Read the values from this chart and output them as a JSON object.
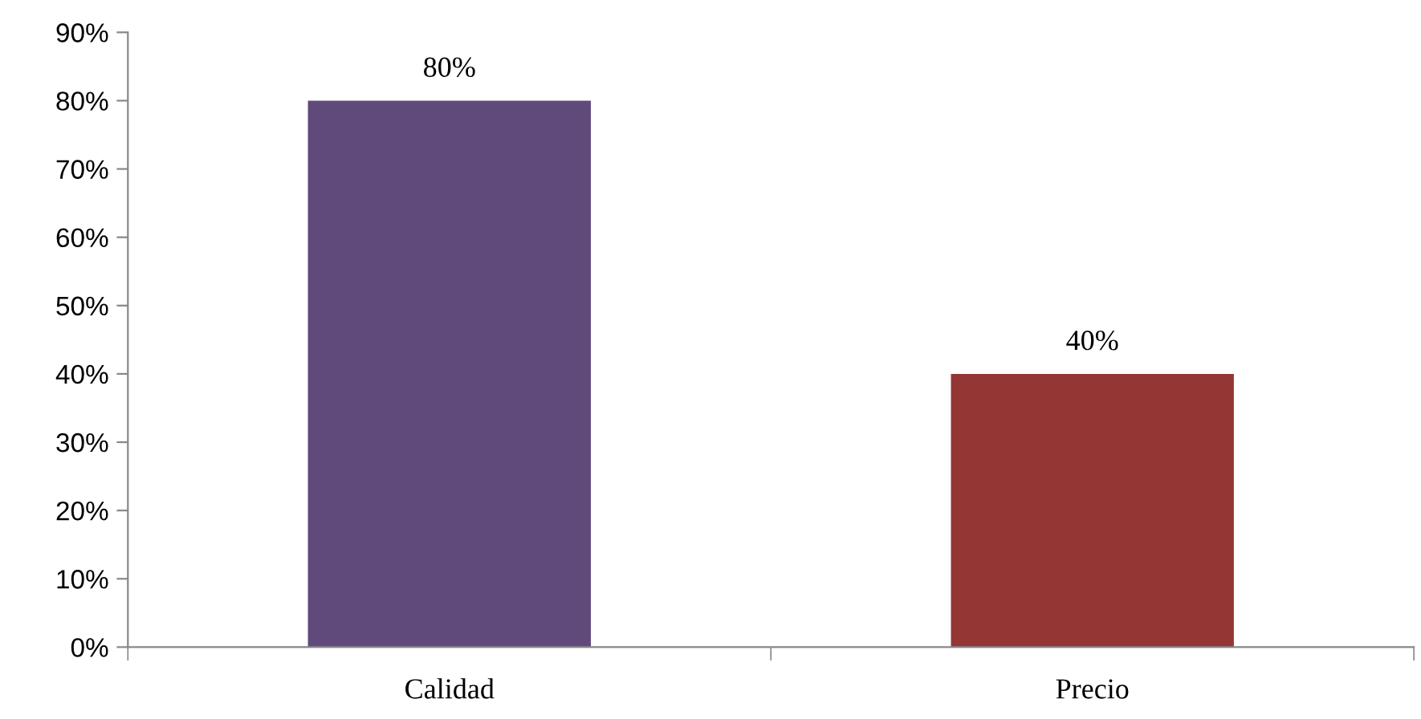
{
  "chart_data": {
    "type": "bar",
    "categories": [
      "Calidad",
      "Precio"
    ],
    "values": [
      80,
      40
    ],
    "colors": [
      "#604a7b",
      "#943634"
    ],
    "value_labels": [
      "80%",
      "40%"
    ],
    "ylim": [
      0,
      90
    ],
    "yticks": [
      {
        "value": 0,
        "label": "0%"
      },
      {
        "value": 10,
        "label": "10%"
      },
      {
        "value": 20,
        "label": "20%"
      },
      {
        "value": 30,
        "label": "30%"
      },
      {
        "value": 40,
        "label": "40%"
      },
      {
        "value": 50,
        "label": "50%"
      },
      {
        "value": 60,
        "label": "60%"
      },
      {
        "value": 70,
        "label": "70%"
      },
      {
        "value": 80,
        "label": "80%"
      },
      {
        "value": 90,
        "label": "90%"
      }
    ],
    "grid": false,
    "legend": false
  }
}
